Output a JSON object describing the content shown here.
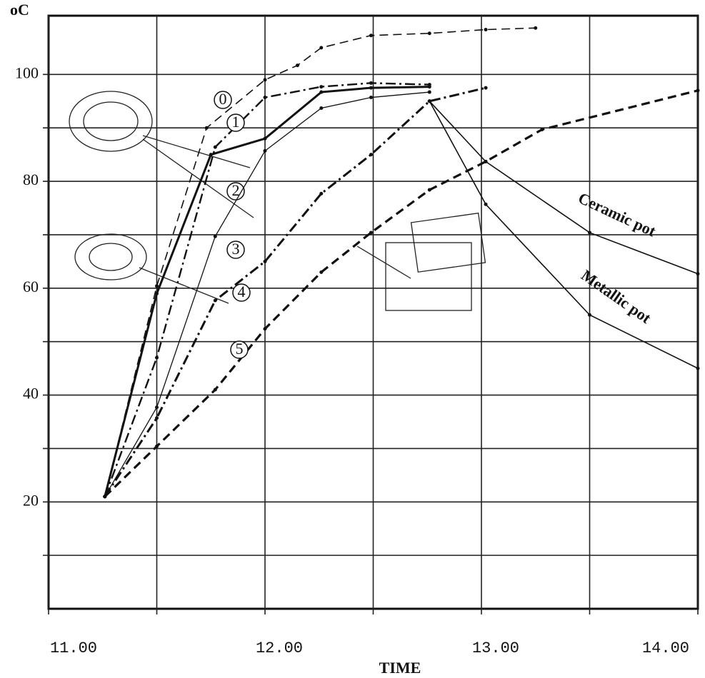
{
  "chart_data": {
    "type": "line",
    "y_label": "oC",
    "x_label": "TIME",
    "xlim": [
      11,
      14
    ],
    "ylim": [
      0,
      111
    ],
    "xticks": [
      {
        "value": 11,
        "label": "11.00"
      },
      {
        "value": 12,
        "label": "12.00"
      },
      {
        "value": 13,
        "label": "13.00"
      },
      {
        "value": 14,
        "label": "14.00"
      }
    ],
    "minor_xticks": [
      11.5,
      12.5,
      13.5
    ],
    "yticks": [
      20,
      40,
      60,
      80,
      100
    ],
    "minor_yticks": [
      10,
      30,
      50,
      70,
      90
    ],
    "grid": true,
    "series": [
      {
        "name": "0",
        "color": "#111",
        "style": "dashed",
        "width": 1.6,
        "x": [
          11.26,
          11.5,
          11.73,
          12,
          12.15,
          12.26,
          12.49,
          12.76,
          13.02,
          13.25
        ],
        "values": [
          21,
          60.4,
          90,
          99,
          101.7,
          105,
          107.3,
          107.7,
          108.4,
          108.7
        ]
      },
      {
        "name": "1",
        "color": "#111",
        "style": "dashdot",
        "width": 2.4,
        "x": [
          11.26,
          11.5,
          11.77,
          12,
          12.26,
          12.49,
          12.76
        ],
        "values": [
          21,
          47,
          86.4,
          95.7,
          97.7,
          98.4,
          98.1
        ]
      },
      {
        "name": "2",
        "color": "#111",
        "style": "solid",
        "width": 3,
        "x": [
          11.26,
          11.5,
          11.75,
          12,
          12.26,
          12.49,
          12.76
        ],
        "values": [
          21,
          59,
          85,
          88,
          96.7,
          97.5,
          97.7
        ]
      },
      {
        "name": "3",
        "color": "#111",
        "style": "solid",
        "width": 1.3,
        "x": [
          11.26,
          11.5,
          11.77,
          12,
          12.26,
          12.49,
          12.76
        ],
        "values": [
          21,
          37.7,
          69.7,
          85.7,
          93.7,
          95.7,
          96.7
        ]
      },
      {
        "name": "4",
        "color": "#111",
        "style": "dashdot",
        "width": 3,
        "x": [
          11.26,
          11.5,
          11.77,
          12,
          12.26,
          12.49,
          12.76,
          13.02
        ],
        "values": [
          21,
          35.7,
          57.7,
          65,
          77.7,
          85,
          95,
          97.5
        ]
      },
      {
        "name": "5",
        "color": "#111",
        "style": "dashed",
        "width": 3.2,
        "x": [
          11.26,
          11.5,
          11.77,
          12,
          12.26,
          12.49,
          12.76,
          13.02,
          13.28,
          14
        ],
        "values": [
          21,
          30.4,
          41,
          52.4,
          63,
          70.4,
          78.4,
          83.7,
          89.7,
          97
        ]
      },
      {
        "name": "Ceramic pot",
        "color": "#111",
        "style": "solid",
        "width": 1.6,
        "x": [
          12.76,
          13.02,
          13.5,
          14
        ],
        "values": [
          95,
          83.7,
          70.4,
          62.7
        ]
      },
      {
        "name": "Metallic pot",
        "color": "#111",
        "style": "solid",
        "width": 1.6,
        "x": [
          12.76,
          13.02,
          13.5,
          14
        ],
        "values": [
          95,
          75.7,
          55,
          45
        ]
      }
    ]
  }
}
